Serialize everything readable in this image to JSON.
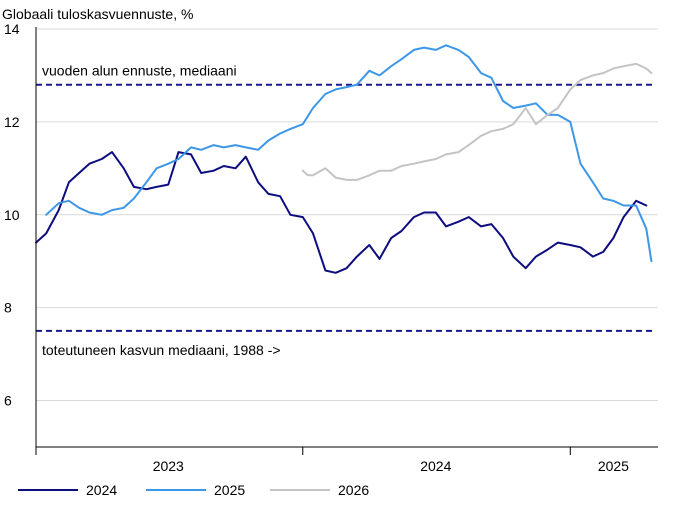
{
  "chart_data": {
    "type": "line",
    "title": "Globaali tuloskasvuennuste, %",
    "xlabel": "",
    "ylabel": "",
    "ylim": [
      5,
      14
    ],
    "yticks": [
      6,
      8,
      10,
      12,
      14
    ],
    "xlim": [
      "2023-01-01",
      "2025-05-01"
    ],
    "x_year_labels": [
      {
        "label": "2023",
        "x": "2023-07-01"
      },
      {
        "label": "2024",
        "x": "2024-07-01"
      },
      {
        "label": "2025",
        "x": "2025-03-01"
      }
    ],
    "year_boundaries": [
      "2023-01-01",
      "2024-01-01",
      "2025-01-01"
    ],
    "grid": "horizontal",
    "legend_position": "bottom-left",
    "reference_lines": [
      {
        "label": "vuoden alun ennuste, mediaani",
        "value": 12.8,
        "color": "#1a1a8c",
        "style": "dashed"
      },
      {
        "label": "toteutuneen kasvun mediaani, 1988 ->",
        "value": 7.5,
        "color": "#1a1a8c",
        "style": "dashed"
      }
    ],
    "series": [
      {
        "name": "2024",
        "color": "#0d0d80",
        "x": [
          "2023-01-01",
          "2023-01-15",
          "2023-02-01",
          "2023-02-15",
          "2023-03-01",
          "2023-03-15",
          "2023-04-01",
          "2023-04-15",
          "2023-05-01",
          "2023-05-15",
          "2023-06-01",
          "2023-06-15",
          "2023-07-01",
          "2023-07-15",
          "2023-08-01",
          "2023-08-15",
          "2023-09-01",
          "2023-09-15",
          "2023-10-01",
          "2023-10-15",
          "2023-11-01",
          "2023-11-15",
          "2023-12-01",
          "2023-12-15",
          "2024-01-01",
          "2024-01-15",
          "2024-02-01",
          "2024-02-15",
          "2024-03-01",
          "2024-03-15",
          "2024-04-01",
          "2024-04-15",
          "2024-05-01",
          "2024-05-15",
          "2024-06-01",
          "2024-06-15",
          "2024-07-01",
          "2024-07-15",
          "2024-08-01",
          "2024-08-15",
          "2024-09-01",
          "2024-09-15",
          "2024-10-01",
          "2024-10-15",
          "2024-11-01",
          "2024-11-15",
          "2024-12-01",
          "2024-12-15",
          "2025-01-01",
          "2025-01-15",
          "2025-02-01",
          "2025-02-15",
          "2025-03-01",
          "2025-03-15",
          "2025-04-01",
          "2025-04-15"
        ],
        "values": [
          9.4,
          9.6,
          10.1,
          10.7,
          10.9,
          11.1,
          11.2,
          11.35,
          11.0,
          10.6,
          10.55,
          10.6,
          10.65,
          11.35,
          11.3,
          10.9,
          10.95,
          11.05,
          11.0,
          11.25,
          10.7,
          10.45,
          10.4,
          10.0,
          9.95,
          9.6,
          8.8,
          8.75,
          8.85,
          9.1,
          9.35,
          9.05,
          9.5,
          9.65,
          9.95,
          10.05,
          10.05,
          9.75,
          9.85,
          9.95,
          9.75,
          9.8,
          9.5,
          9.1,
          8.85,
          9.1,
          9.25,
          9.4,
          9.35,
          9.3,
          9.1,
          9.2,
          9.5,
          9.95,
          10.3,
          10.2
        ]
      },
      {
        "name": "2025",
        "color": "#3d97e8",
        "x": [
          "2023-01-15",
          "2023-02-01",
          "2023-02-15",
          "2023-03-01",
          "2023-03-15",
          "2023-04-01",
          "2023-04-15",
          "2023-05-01",
          "2023-05-15",
          "2023-06-01",
          "2023-06-15",
          "2023-07-01",
          "2023-07-15",
          "2023-08-01",
          "2023-08-15",
          "2023-09-01",
          "2023-09-15",
          "2023-10-01",
          "2023-10-15",
          "2023-11-01",
          "2023-11-15",
          "2023-12-01",
          "2023-12-15",
          "2024-01-01",
          "2024-01-15",
          "2024-02-01",
          "2024-02-15",
          "2024-03-01",
          "2024-03-15",
          "2024-04-01",
          "2024-04-15",
          "2024-05-01",
          "2024-05-15",
          "2024-06-01",
          "2024-06-15",
          "2024-07-01",
          "2024-07-15",
          "2024-08-01",
          "2024-08-15",
          "2024-09-01",
          "2024-09-15",
          "2024-10-01",
          "2024-10-15",
          "2024-11-01",
          "2024-11-15",
          "2024-12-01",
          "2024-12-15",
          "2025-01-01",
          "2025-01-15",
          "2025-02-01",
          "2025-02-15",
          "2025-03-01",
          "2025-03-15",
          "2025-04-01",
          "2025-04-15",
          "2025-04-22"
        ],
        "values": [
          10.0,
          10.25,
          10.3,
          10.15,
          10.05,
          10.0,
          10.1,
          10.15,
          10.35,
          10.7,
          11.0,
          11.1,
          11.2,
          11.45,
          11.4,
          11.5,
          11.45,
          11.5,
          11.45,
          11.4,
          11.6,
          11.75,
          11.85,
          11.95,
          12.3,
          12.6,
          12.7,
          12.75,
          12.8,
          13.1,
          13.0,
          13.2,
          13.35,
          13.55,
          13.6,
          13.55,
          13.65,
          13.55,
          13.4,
          13.05,
          12.95,
          12.45,
          12.3,
          12.35,
          12.4,
          12.15,
          12.15,
          12.0,
          11.1,
          10.7,
          10.35,
          10.3,
          10.2,
          10.2,
          9.7,
          9.0
        ]
      },
      {
        "name": "2026",
        "color": "#c4c4c4",
        "x": [
          "2024-01-01",
          "2024-01-08",
          "2024-01-15",
          "2024-02-01",
          "2024-02-15",
          "2024-03-01",
          "2024-03-15",
          "2024-04-01",
          "2024-04-15",
          "2024-05-01",
          "2024-05-15",
          "2024-06-01",
          "2024-06-15",
          "2024-07-01",
          "2024-07-15",
          "2024-08-01",
          "2024-08-15",
          "2024-09-01",
          "2024-09-15",
          "2024-10-01",
          "2024-10-15",
          "2024-11-01",
          "2024-11-15",
          "2024-12-01",
          "2024-12-15",
          "2025-01-01",
          "2025-01-15",
          "2025-02-01",
          "2025-02-15",
          "2025-03-01",
          "2025-03-15",
          "2025-04-01",
          "2025-04-15",
          "2025-04-22"
        ],
        "values": [
          10.95,
          10.85,
          10.85,
          11.0,
          10.8,
          10.75,
          10.75,
          10.85,
          10.95,
          10.95,
          11.05,
          11.1,
          11.15,
          11.2,
          11.3,
          11.35,
          11.5,
          11.7,
          11.8,
          11.85,
          11.95,
          12.3,
          11.95,
          12.15,
          12.3,
          12.7,
          12.9,
          13.0,
          13.05,
          13.15,
          13.2,
          13.25,
          13.15,
          13.05
        ]
      }
    ]
  }
}
